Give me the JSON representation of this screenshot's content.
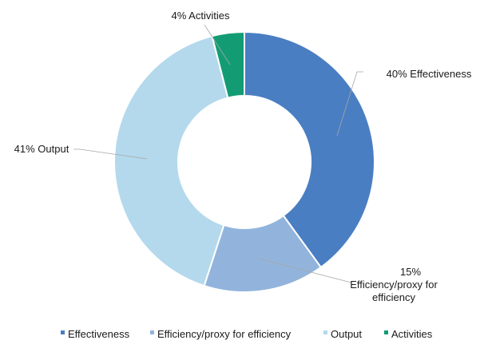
{
  "chart_data": {
    "type": "pie",
    "variant": "donut",
    "categories": [
      "Effectiveness",
      "Efficiency/proxy for efficiency",
      "Output",
      "Activities"
    ],
    "values": [
      40,
      15,
      41,
      4
    ],
    "unit": "%",
    "colors": [
      "#4A7EC2",
      "#92B4DC",
      "#B4D9EC",
      "#139C74"
    ],
    "data_labels": [
      [
        "40% Effectiveness"
      ],
      [
        "15%",
        "Efficiency/proxy for",
        "efficiency"
      ],
      [
        "41% Output"
      ],
      [
        "4% Activities"
      ]
    ],
    "legend": {
      "position": "bottom",
      "items": [
        "Effectiveness",
        "Efficiency/proxy for efficiency",
        "Output",
        "Activities"
      ]
    }
  }
}
